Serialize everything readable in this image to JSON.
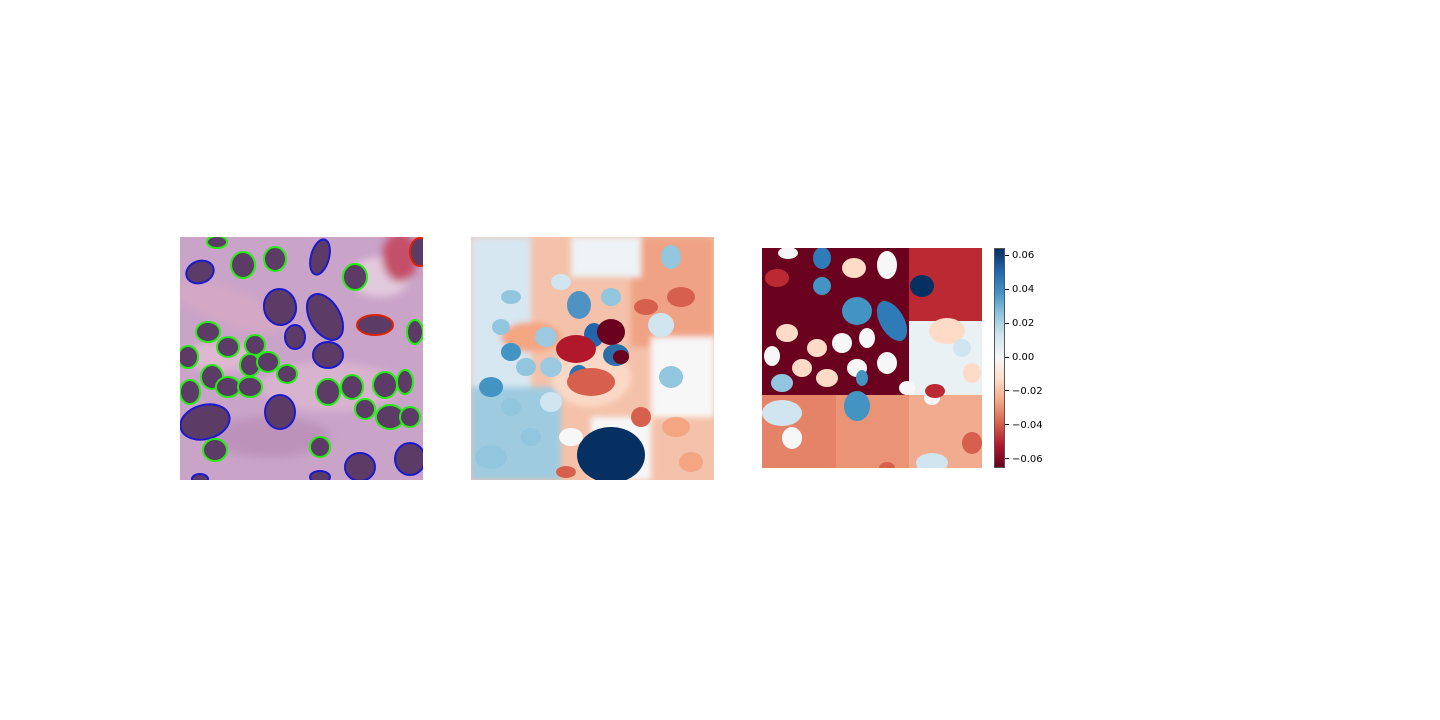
{
  "panels": [
    {
      "id": "panel-a",
      "content": "histology image with green, blue and red nucleus outlines"
    },
    {
      "id": "panel-b",
      "content": "per-pixel attribution map"
    },
    {
      "id": "panel-c",
      "content": "region attribution map"
    }
  ],
  "colorbar": {
    "colormap": "RdBu",
    "colors": [
      "#67001f",
      "#b2182b",
      "#d6604d",
      "#f4a582",
      "#fddbc7",
      "#f7f7f7",
      "#d1e5f0",
      "#92c5de",
      "#4393c3",
      "#2166ac",
      "#053061"
    ],
    "range": [
      -0.065,
      0.065
    ],
    "ticks": [
      {
        "value": 0.06,
        "label": "0.06"
      },
      {
        "value": 0.04,
        "label": "0.04"
      },
      {
        "value": 0.02,
        "label": "0.02"
      },
      {
        "value": 0.0,
        "label": "0.00"
      },
      {
        "value": -0.02,
        "label": "−0.02"
      },
      {
        "value": -0.04,
        "label": "−0.04"
      },
      {
        "value": -0.06,
        "label": "−0.06"
      }
    ]
  },
  "outline_colors": {
    "green": "#22ee11",
    "blue": "#1a1acc",
    "red": "#dd2200"
  }
}
